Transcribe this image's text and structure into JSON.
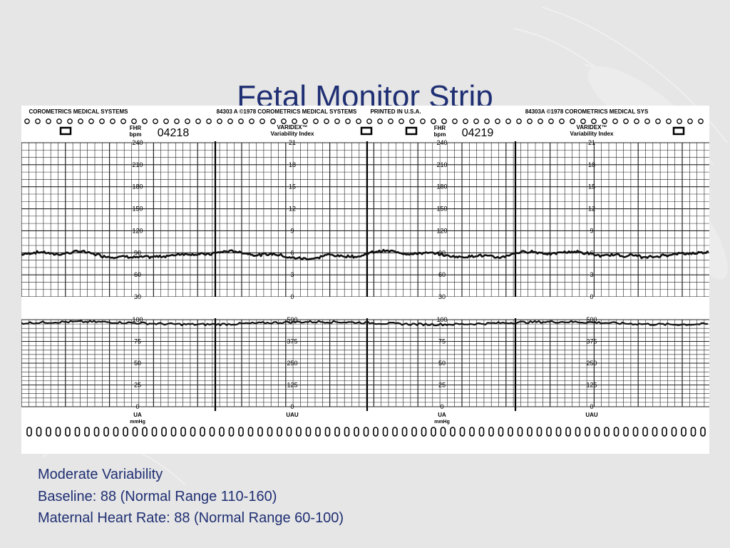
{
  "slide": {
    "title": "Fetal Monitor Strip",
    "notes": [
      "Moderate Variability",
      "Baseline: 88 (Normal Range 110-160)",
      "Maternal Heart Rate: 88 (Normal Range 60-100)"
    ]
  },
  "strip": {
    "panels": [
      {
        "header": "COROMETRICS MEDICAL SYSTEMS",
        "printed": "PRINTED IN U.S.A.",
        "chart_number": "04218",
        "fhr_label": "FHR",
        "fhr_unit": "bpm",
        "fhr_ticks": [
          "240",
          "210",
          "180",
          "150",
          "120",
          "90",
          "60",
          "30"
        ],
        "ua_ticks": [
          "100",
          "75",
          "50",
          "25",
          "0"
        ],
        "ua_label": "UA",
        "ua_unit": "mmHg"
      },
      {
        "header": "84303 A   ©1978  COROMETRICS MEDICAL SYSTEMS",
        "var_label": "VARIDEX™",
        "var_sub": "Variability Index",
        "var_ticks": [
          "21",
          "18",
          "15",
          "12",
          "9",
          "6",
          "3",
          "0"
        ],
        "uau_ticks": [
          "500",
          "375",
          "250",
          "125",
          "0"
        ],
        "uau_label": "UAU"
      },
      {
        "header": "PRINTED IN U.S.A.",
        "chart_number": "04219",
        "fhr_label": "FHR",
        "fhr_unit": "bpm",
        "fhr_ticks": [
          "240",
          "210",
          "180",
          "150",
          "120",
          "90",
          "60",
          "30"
        ],
        "ua_ticks": [
          "100",
          "75",
          "50",
          "25",
          "0"
        ],
        "ua_label": "UA",
        "ua_unit": "mmHg"
      },
      {
        "header": "84303A   ©1978  COROMETRICS MEDICAL SYS",
        "var_label": "VARIDEX™",
        "var_sub": "Variability Index",
        "var_ticks": [
          "21",
          "18",
          "15",
          "12",
          "9",
          "6",
          "3",
          "0"
        ],
        "uau_ticks": [
          "500",
          "375",
          "250",
          "125",
          "0"
        ],
        "uau_label": "UAU"
      }
    ],
    "fhr_baseline_bpm": 88,
    "ua_baseline_mmhg": 100
  }
}
